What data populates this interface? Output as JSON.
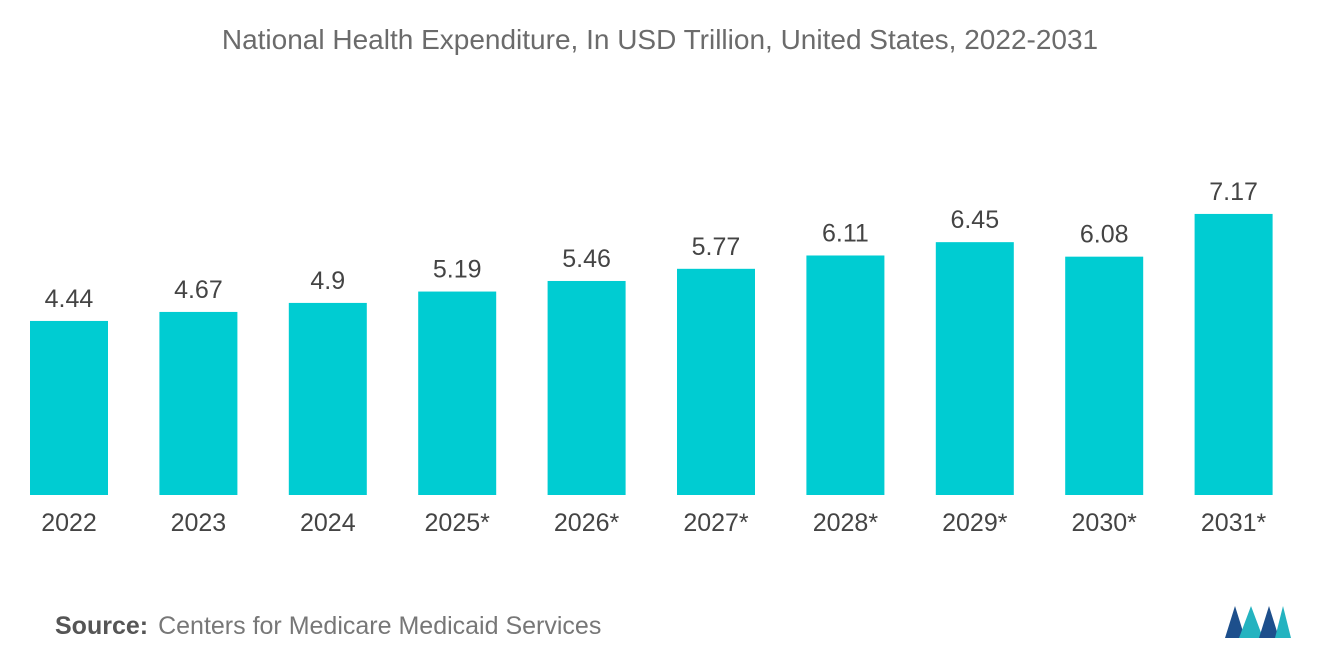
{
  "chart_data": {
    "type": "bar",
    "title": "National Health Expenditure, In USD Trillion, United States, 2022-2031",
    "categories": [
      "2022",
      "2023",
      "2024",
      "2025*",
      "2026*",
      "2027*",
      "2028*",
      "2029*",
      "2030*",
      "2031*"
    ],
    "values": [
      4.44,
      4.67,
      4.9,
      5.19,
      5.46,
      5.77,
      6.11,
      6.45,
      6.08,
      7.17
    ],
    "value_labels": [
      "4.44",
      "4.67",
      "4.9",
      "5.19",
      "5.46",
      "5.77",
      "6.11",
      "6.45",
      "6.08",
      "7.17"
    ],
    "xlabel": "",
    "ylabel": "",
    "grid": false,
    "bar_color": "#00ccd2"
  },
  "source": {
    "label": "Source:",
    "text": "Centers for Medicare Medicaid Services"
  },
  "colors": {
    "title": "#6b6b6b",
    "label": "#444444",
    "logo_dark": "#1d4f8c",
    "logo_light": "#24b3c0"
  }
}
